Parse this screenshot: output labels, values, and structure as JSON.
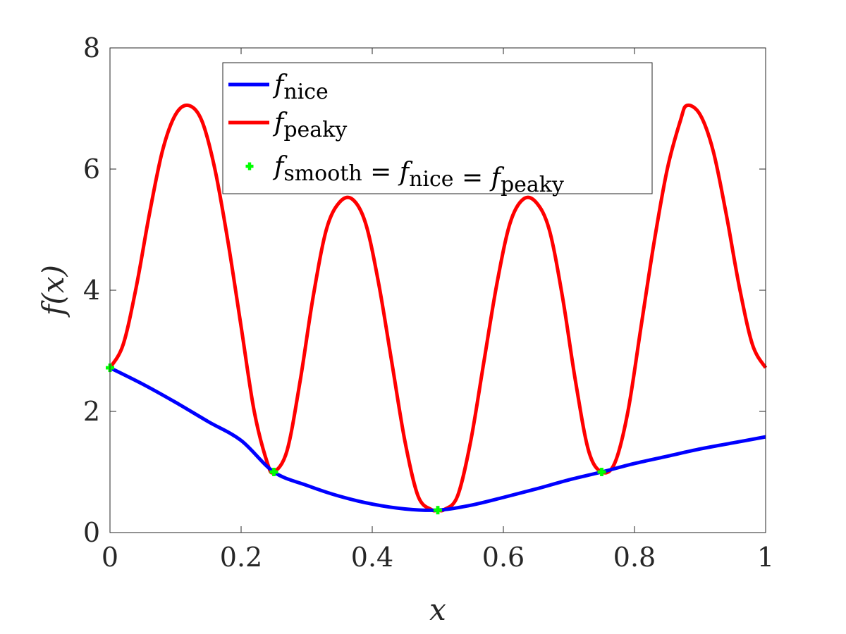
{
  "chart_data": {
    "type": "line",
    "xlabel": "x",
    "ylabel": "f(x)",
    "xlim": [
      0,
      1
    ],
    "ylim": [
      0,
      8
    ],
    "xticks": [
      0,
      0.2,
      0.4,
      0.6,
      0.8,
      1
    ],
    "xtick_labels": [
      "0",
      "0.2",
      "0.4",
      "0.6",
      "0.8",
      "1"
    ],
    "yticks": [
      0,
      2,
      4,
      6,
      8
    ],
    "ytick_labels": [
      "0",
      "2",
      "4",
      "6",
      "8"
    ],
    "grid": false,
    "legend_position": "top-center",
    "series": [
      {
        "name": "f_nice",
        "legend_parts": [
          {
            "text": "f",
            "italic": true
          },
          {
            "text": "nice",
            "sub": true
          }
        ],
        "color": "#0000ff",
        "style": "line",
        "x": [
          0,
          0.05,
          0.1,
          0.15,
          0.2,
          0.25,
          0.3,
          0.35,
          0.4,
          0.45,
          0.5,
          0.55,
          0.6,
          0.65,
          0.7,
          0.75,
          0.8,
          0.85,
          0.9,
          0.95,
          1
        ],
        "y": [
          2.72,
          2.45,
          2.15,
          1.83,
          1.52,
          1.0,
          0.78,
          0.6,
          0.47,
          0.39,
          0.37,
          0.45,
          0.58,
          0.72,
          0.87,
          1.0,
          1.14,
          1.26,
          1.38,
          1.48,
          1.58
        ]
      },
      {
        "name": "f_peaky",
        "legend_parts": [
          {
            "text": "f",
            "italic": true
          },
          {
            "text": "peaky",
            "sub": true
          }
        ],
        "color": "#ff0000",
        "style": "line",
        "x": [
          0,
          0.02,
          0.04,
          0.06,
          0.08,
          0.1,
          0.12,
          0.14,
          0.16,
          0.18,
          0.2,
          0.22,
          0.24,
          0.25,
          0.27,
          0.29,
          0.31,
          0.33,
          0.35,
          0.37,
          0.39,
          0.41,
          0.43,
          0.45,
          0.47,
          0.49,
          0.5,
          0.51,
          0.53,
          0.55,
          0.57,
          0.59,
          0.61,
          0.63,
          0.65,
          0.67,
          0.69,
          0.71,
          0.73,
          0.75,
          0.77,
          0.79,
          0.81,
          0.83,
          0.85,
          0.87,
          0.88,
          0.9,
          0.92,
          0.94,
          0.96,
          0.98,
          1
        ],
        "y": [
          2.72,
          3.1,
          4.05,
          5.25,
          6.3,
          6.9,
          7.05,
          6.8,
          6.0,
          4.8,
          3.4,
          2.0,
          1.15,
          1.0,
          1.35,
          2.5,
          3.9,
          5.0,
          5.45,
          5.5,
          5.1,
          4.1,
          2.8,
          1.5,
          0.6,
          0.38,
          0.37,
          0.38,
          0.6,
          1.5,
          2.8,
          4.1,
          5.1,
          5.5,
          5.45,
          5.0,
          3.9,
          2.5,
          1.35,
          1.0,
          1.15,
          2.0,
          3.4,
          4.8,
          6.0,
          6.8,
          7.05,
          6.9,
          6.3,
          5.25,
          4.05,
          3.1,
          2.72
        ]
      },
      {
        "name": "f_smooth = f_nice = f_peaky",
        "legend_parts": [
          {
            "text": "f",
            "italic": true
          },
          {
            "text": "smooth",
            "sub": true
          },
          {
            "text": " = "
          },
          {
            "text": "f",
            "italic": true
          },
          {
            "text": "nice",
            "sub": true
          },
          {
            "text": " = "
          },
          {
            "text": "f",
            "italic": true
          },
          {
            "text": "peaky",
            "sub": true
          }
        ],
        "color": "#00ff00",
        "style": "marker",
        "x": [
          0,
          0.25,
          0.5,
          0.75
        ],
        "y": [
          2.72,
          1.0,
          0.37,
          1.0
        ]
      }
    ]
  }
}
